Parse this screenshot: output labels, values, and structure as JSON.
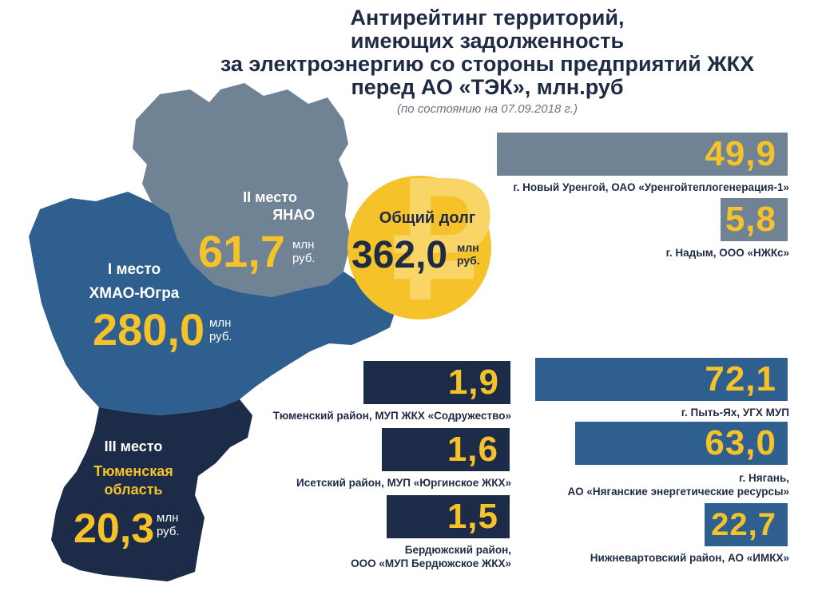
{
  "header": {
    "title_lines": [
      "Антирейтинг территорий,",
      "имеющих задолженность",
      "за электроэнергию со стороны предприятий ЖКХ",
      "перед АО «ТЭК», млн.руб"
    ],
    "subtitle": "(по состоянию на 07.09.2018 г.)"
  },
  "total": {
    "label": "Общий долг",
    "value": "362,0",
    "unit_line1": "млн",
    "unit_line2": "руб."
  },
  "regions": [
    {
      "place": "I место",
      "name": "ХМАО-Югра",
      "value": "280,0",
      "unit_line1": "млн",
      "unit_line2": "руб.",
      "color": "#2e5f8e"
    },
    {
      "place": "II место",
      "name": "ЯНАО",
      "value": "61,7",
      "unit_line1": "млн",
      "unit_line2": "руб.",
      "color": "#6f8395"
    },
    {
      "place": "III место",
      "name_line1": "Тюменская",
      "name_line2": "область",
      "value": "20,3",
      "unit_line1": "млн",
      "unit_line2": "руб.",
      "color": "#1c2b48"
    }
  ],
  "chart_data": {
    "type": "bar",
    "title": "Антирейтинг территорий, имеющих задолженность за электроэнергию со стороны предприятий ЖКХ перед АО «ТЭК», млн.руб",
    "groups": [
      {
        "region": "ЯНАО",
        "color": "#6f8395",
        "items": [
          {
            "label_lines": [
              "г. Новый Уренгой, ОАО «Уренгойтеплогенерация-1»"
            ],
            "value": 49.9,
            "display": "49,9"
          },
          {
            "label_lines": [
              "г. Надым, ООО «НЖКс»"
            ],
            "value": 5.8,
            "display": "5,8"
          }
        ]
      },
      {
        "region": "ХМАО-Югра",
        "color": "#2e5f8e",
        "items": [
          {
            "label_lines": [
              "г. Пыть-Ях, УГХ МУП"
            ],
            "value": 72.1,
            "display": "72,1"
          },
          {
            "label_lines": [
              "г. Нягань,",
              "АО «Няганские энергетические ресурсы»"
            ],
            "value": 63.0,
            "display": "63,0"
          },
          {
            "label_lines": [
              "Нижневартовский район, АО «ИМКХ»"
            ],
            "value": 22.7,
            "display": "22,7"
          }
        ]
      },
      {
        "region": "Тюменская область",
        "color": "#1c2b48",
        "items": [
          {
            "label_lines": [
              "Тюменский район, МУП ЖКХ «Содружество»"
            ],
            "value": 1.9,
            "display": "1,9"
          },
          {
            "label_lines": [
              "Исетский район, МУП «Юргинское ЖКХ»"
            ],
            "value": 1.6,
            "display": "1,6"
          },
          {
            "label_lines": [
              "Бердюжский район,",
              "ООО «МУП Бердюжское ЖКХ»"
            ],
            "value": 1.5,
            "display": "1,5"
          }
        ]
      }
    ]
  }
}
